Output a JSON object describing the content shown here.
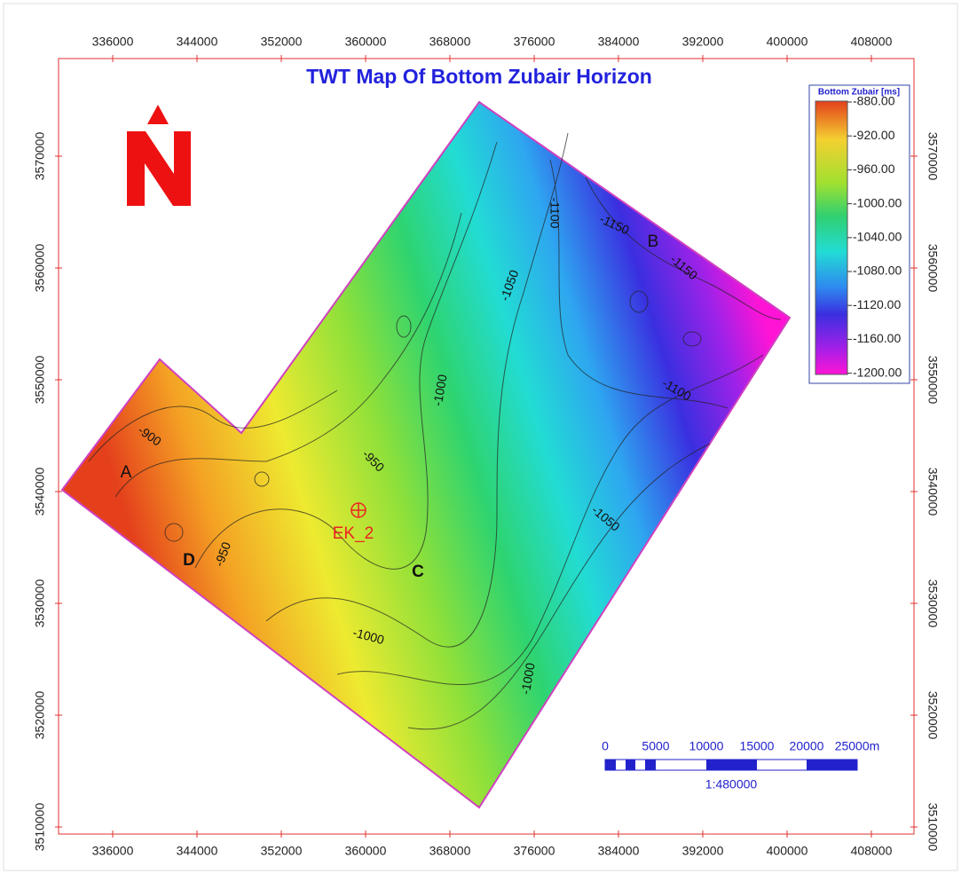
{
  "title": "TWT Map Of Bottom Zubair Horizon",
  "x_axis_labels": [
    "336000",
    "344000",
    "352000",
    "360000",
    "368000",
    "376000",
    "384000",
    "392000",
    "400000",
    "408000"
  ],
  "y_axis_labels": [
    "3570000",
    "3560000",
    "3550000",
    "3540000",
    "3530000",
    "3520000",
    "3510000"
  ],
  "legend": {
    "title": "Bottom Zubair [ms]",
    "labels": [
      "-880.00",
      "-920.00",
      "-960.00",
      "-1000.00",
      "-1040.00",
      "-1080.00",
      "-1120.00",
      "-1160.00",
      "-1200.00"
    ]
  },
  "north_label": "N",
  "contour_labels": [
    "-900",
    "-950",
    "-950",
    "-1000",
    "-1000",
    "-1050",
    "-1050",
    "-1100",
    "-1150",
    "-1150",
    "-1100",
    "-1000"
  ],
  "well": {
    "name": "EK_2"
  },
  "point_labels": [
    "A",
    "B",
    "C",
    "D"
  ],
  "scale_bar": {
    "labels": [
      "0",
      "5000",
      "10000",
      "15000",
      "20000",
      "25000m"
    ],
    "ratio": "1:480000"
  }
}
